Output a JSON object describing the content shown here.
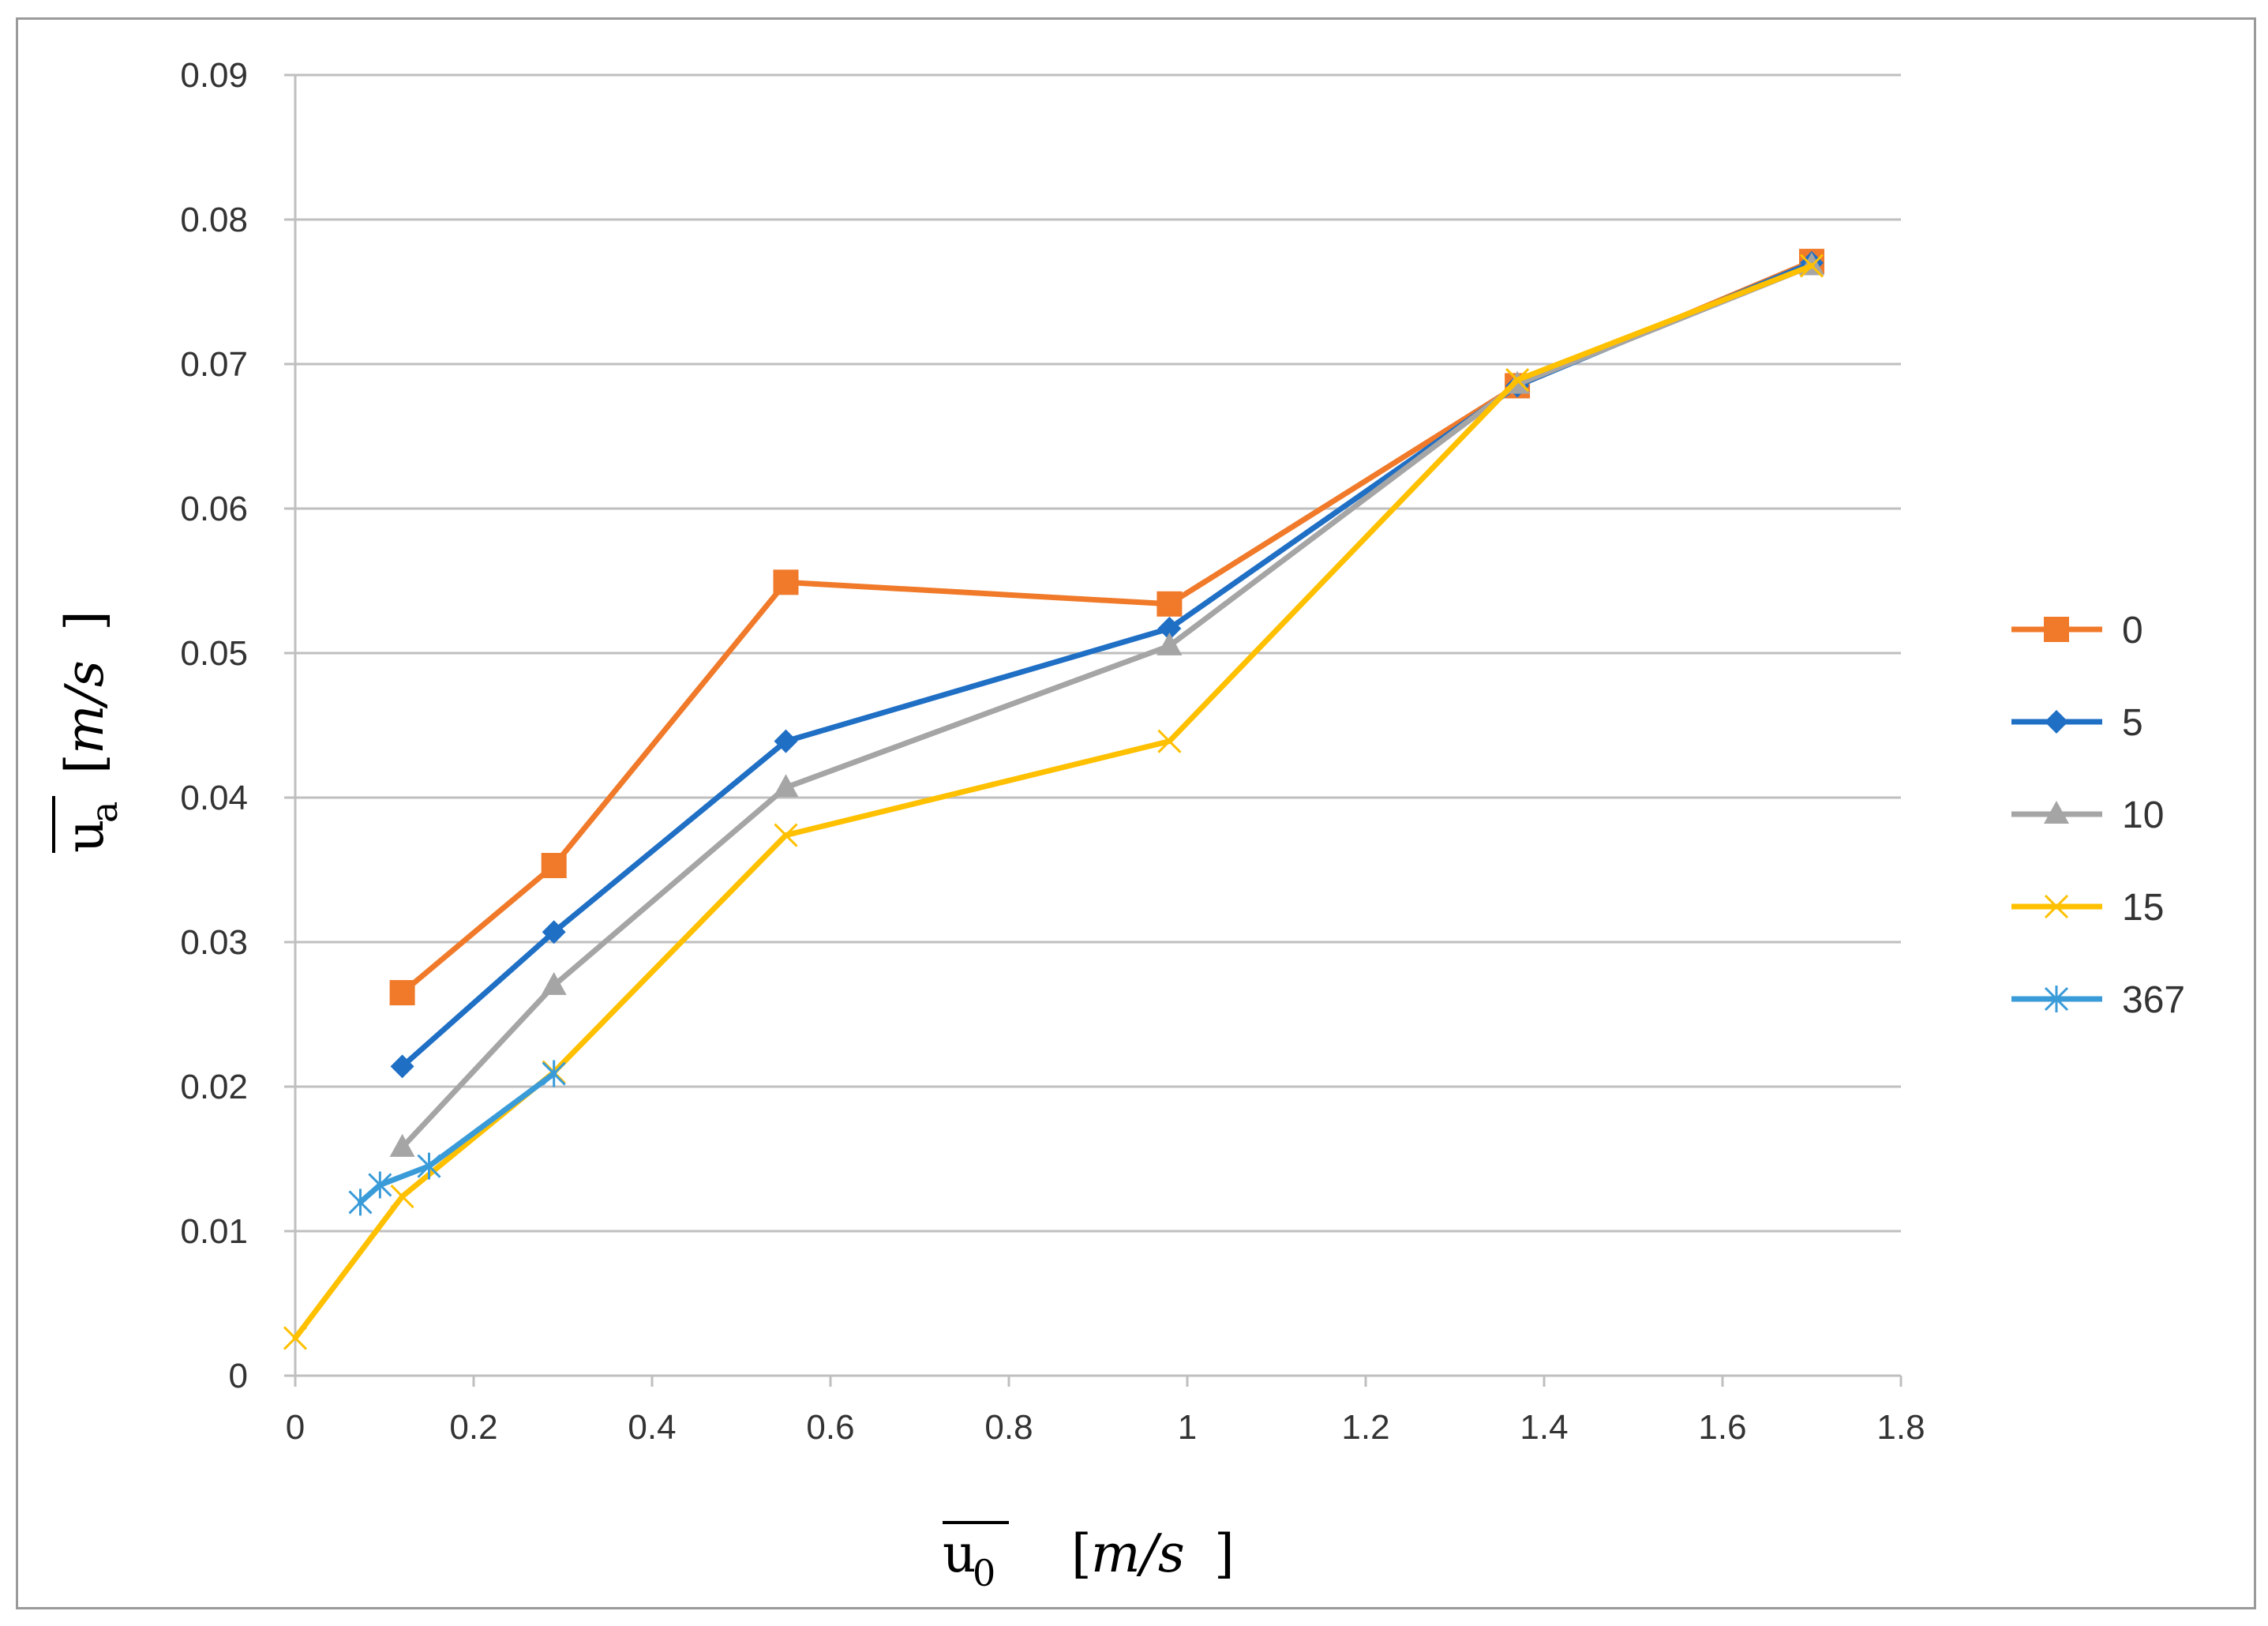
{
  "chart_data": {
    "type": "line",
    "title": "",
    "xlabel": {
      "symbol": "u",
      "subscript": "0",
      "units_open": "[",
      "units": "m/s",
      "units_close": "]"
    },
    "ylabel": {
      "symbol": "u",
      "subscript": "a",
      "units_open": "[",
      "units": "m/s",
      "units_close": "]"
    },
    "xlim": [
      0,
      1.8
    ],
    "ylim": [
      0,
      0.09
    ],
    "x_ticks": [
      "0",
      "0.2",
      "0.4",
      "0.6",
      "0.8",
      "1",
      "1.2",
      "1.4",
      "1.6",
      "1.8"
    ],
    "y_ticks": [
      "0",
      "0.01",
      "0.02",
      "0.03",
      "0.04",
      "0.05",
      "0.06",
      "0.07",
      "0.08",
      "0.09"
    ],
    "grid": "horizontal",
    "legend_position": "right",
    "series": [
      {
        "name": "0",
        "color": "#F07A2A",
        "marker": "square",
        "x": [
          0.12,
          0.29,
          0.55,
          0.98,
          1.37,
          1.7
        ],
        "y": [
          0.0265,
          0.0353,
          0.0549,
          0.0534,
          0.0685,
          0.0771
        ]
      },
      {
        "name": "5",
        "color": "#1F6FC5",
        "marker": "diamond",
        "x": [
          0.12,
          0.29,
          0.55,
          0.98,
          1.37,
          1.7
        ],
        "y": [
          0.0214,
          0.0307,
          0.0439,
          0.0517,
          0.0685,
          0.077
        ]
      },
      {
        "name": "10",
        "color": "#A5A5A5",
        "marker": "triangle",
        "x": [
          0.12,
          0.29,
          0.55,
          0.98,
          1.37,
          1.7
        ],
        "y": [
          0.0158,
          0.027,
          0.0407,
          0.0505,
          0.0686,
          0.0768
        ]
      },
      {
        "name": "15",
        "color": "#FFC000",
        "marker": "x",
        "x": [
          0.0,
          0.12,
          0.29,
          0.55,
          0.98,
          1.37,
          1.7
        ],
        "y": [
          0.0026,
          0.0124,
          0.021,
          0.0374,
          0.0439,
          0.0689,
          0.0768
        ]
      },
      {
        "name": "367",
        "color": "#3A9BD9",
        "marker": "asterisk",
        "x": [
          0.073,
          0.095,
          0.15,
          0.29
        ],
        "y": [
          0.012,
          0.0132,
          0.0145,
          0.0209
        ]
      }
    ]
  }
}
